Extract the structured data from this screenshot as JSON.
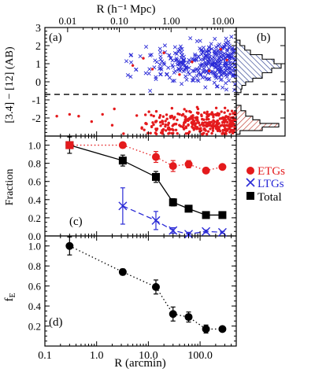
{
  "colors": {
    "etg": "#e41a1c",
    "ltg": "#2b2bd6",
    "total": "#000000",
    "hatch_b_ltg": "#2a3c8f",
    "hatch_b_etg": "#c0392b"
  },
  "axes_text": {
    "top_xlabel": "R (h⁻¹ Mpc)",
    "bottom_xlabel": "R (arcmin)",
    "ylabel_a": "[3.4] − [12] (AB)",
    "ylabel_c": "Fraction",
    "ylabel_d": "f",
    "ylabel_d_sub": "E"
  },
  "panel_labels": {
    "a": "(a)",
    "b": "(b)",
    "c": "(c)",
    "d": "(d)"
  },
  "legend": {
    "etg": "ETGs",
    "ltg": "LTGs",
    "total": "Total",
    "placement": "right of panel c"
  },
  "chart_data": [
    {
      "id": "panel-a",
      "type": "scatter",
      "xscale": "log",
      "xlim": [
        0.1,
        500
      ],
      "ylim": [
        -3,
        3
      ],
      "top_axis": {
        "label": "R (h⁻¹ Mpc)",
        "ticks": [
          0.01,
          0.1,
          1.0,
          10.0
        ],
        "tick_labels": [
          "0.01",
          "0.10",
          "1.00",
          "10.00"
        ]
      },
      "yticks": [
        -2,
        -1,
        0,
        1,
        2,
        3
      ],
      "divider_y": -0.7,
      "series": [
        {
          "name": "ETGs",
          "marker": "dot",
          "description_points": "red dots concentrated at color ≈ -2.5 to -1.0 over R≈3 to 400 arcmin"
        },
        {
          "name": "LTGs",
          "marker": "x",
          "description_points": "blue crosses concentrated at color ≈ 0 to 2.5 over R≈5 to 400 arcmin"
        }
      ]
    },
    {
      "id": "panel-b",
      "type": "bar",
      "orientation": "horizontal histogram",
      "ylim": [
        -3,
        3
      ],
      "series": [
        {
          "name": "LTGs",
          "bins": [
            {
              "y0": -0.6,
              "y1": -0.4,
              "n": 0.1
            },
            {
              "y0": -0.4,
              "y1": -0.2,
              "n": 0.12
            },
            {
              "y0": -0.2,
              "y1": 0.0,
              "n": 0.2
            },
            {
              "y0": 0.0,
              "y1": 0.2,
              "n": 0.35
            },
            {
              "y0": 0.2,
              "y1": 0.5,
              "n": 0.55
            },
            {
              "y0": 0.5,
              "y1": 0.75,
              "n": 0.75
            },
            {
              "y0": 0.75,
              "y1": 1.0,
              "n": 0.95
            },
            {
              "y0": 1.0,
              "y1": 1.25,
              "n": 0.8
            },
            {
              "y0": 1.25,
              "y1": 1.5,
              "n": 0.55
            },
            {
              "y0": 1.5,
              "y1": 1.75,
              "n": 0.3
            },
            {
              "y0": 1.75,
              "y1": 2.0,
              "n": 0.18
            },
            {
              "y0": 2.0,
              "y1": 2.3,
              "n": 0.08
            }
          ]
        },
        {
          "name": "ETGs",
          "bins": [
            {
              "y0": -2.9,
              "y1": -2.7,
              "n": 0.08
            },
            {
              "y0": -2.7,
              "y1": -2.5,
              "n": 0.55
            },
            {
              "y0": -2.5,
              "y1": -2.3,
              "n": 0.9
            },
            {
              "y0": -2.3,
              "y1": -2.1,
              "n": 0.5
            },
            {
              "y0": -2.1,
              "y1": -1.9,
              "n": 0.35
            },
            {
              "y0": -1.9,
              "y1": -1.6,
              "n": 0.2
            },
            {
              "y0": -1.6,
              "y1": -1.3,
              "n": 0.1
            }
          ]
        }
      ]
    },
    {
      "id": "panel-c",
      "type": "line",
      "xscale": "log",
      "xlim": [
        0.1,
        500
      ],
      "ylim": [
        0.0,
        1.1
      ],
      "yticks": [
        0.0,
        0.2,
        0.4,
        0.6,
        0.8,
        1.0
      ],
      "ytick_labels": [
        "0.0",
        "0.2",
        "0.4",
        "0.6",
        "0.8",
        "1.0"
      ],
      "series": [
        {
          "name": "ETGs",
          "marker": "circle",
          "linestyle": "dotted",
          "x": [
            0.3,
            3.2,
            14,
            30,
            60,
            130,
            270
          ],
          "y": [
            1.0,
            1.0,
            0.87,
            0.77,
            0.79,
            0.72,
            0.76
          ],
          "err": [
            0.0,
            0.0,
            0.06,
            0.06,
            0.04,
            0.03,
            0.02
          ]
        },
        {
          "name": "LTGs",
          "marker": "x",
          "linestyle": "dashed",
          "x": [
            3.2,
            14,
            30,
            60,
            130,
            270
          ],
          "y": [
            0.33,
            0.17,
            0.06,
            0.02,
            0.05,
            0.04
          ],
          "err": [
            0.2,
            0.1,
            0.03,
            0.02,
            0.015,
            0.01
          ]
        },
        {
          "name": "Total",
          "marker": "square",
          "linestyle": "solid",
          "x": [
            0.3,
            3.2,
            14,
            30,
            60,
            130,
            270
          ],
          "y": [
            1.0,
            0.83,
            0.65,
            0.37,
            0.3,
            0.23,
            0.23
          ],
          "err": [
            0.09,
            0.06,
            0.06,
            0.04,
            0.02,
            0.02,
            0.01
          ]
        }
      ]
    },
    {
      "id": "panel-d",
      "type": "line",
      "xscale": "log",
      "xlim": [
        0.1,
        500
      ],
      "ylim": [
        0.0,
        1.1
      ],
      "yticks": [
        0.2,
        0.4,
        0.6,
        0.8,
        1.0
      ],
      "ytick_labels": [
        "0.2",
        "0.4",
        "0.6",
        "0.8",
        "1.0"
      ],
      "xticks": [
        0.1,
        1.0,
        10.0,
        100.0
      ],
      "xtick_labels": [
        "0.1",
        "1.0",
        "10.0",
        "100.0"
      ],
      "series": [
        {
          "marker": "circle",
          "linestyle": "dotted",
          "x": [
            0.3,
            3.2,
            14,
            30,
            60,
            130,
            270
          ],
          "y": [
            1.0,
            0.74,
            0.59,
            0.32,
            0.29,
            0.17,
            0.17
          ],
          "err": [
            0.09,
            0.03,
            0.07,
            0.07,
            0.05,
            0.04,
            0.02
          ]
        }
      ]
    }
  ]
}
